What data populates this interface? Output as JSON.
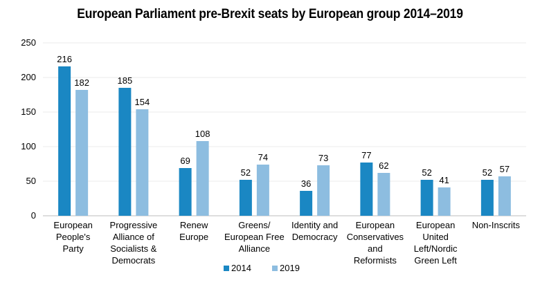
{
  "chart_data": {
    "type": "bar",
    "title": "European Parliament pre-Brexit seats by European group 2014–2019",
    "categories": [
      "European People's Party",
      "Progressive Alliance of Socialists & Democrats",
      "Renew Europe",
      "Greens/ European Free Alliance",
      "Identity and Democracy",
      "European Conservatives and Reformists",
      "European United Left/Nordic Green Left",
      "Non-Inscrits"
    ],
    "category_lines": [
      [
        "European",
        "People's",
        "Party"
      ],
      [
        "Progressive",
        "Alliance of",
        "Socialists &",
        "Democrats"
      ],
      [
        "Renew",
        "Europe"
      ],
      [
        "Greens/",
        "European Free",
        "Alliance"
      ],
      [
        "Identity and",
        "Democracy"
      ],
      [
        "European",
        "Conservatives",
        "and",
        "Reformists"
      ],
      [
        "European",
        "United",
        "Left/Nordic",
        "Green Left"
      ],
      [
        "Non-Inscrits"
      ]
    ],
    "series": [
      {
        "name": "2014",
        "color": "#1a87c3",
        "values": [
          216,
          185,
          69,
          52,
          36,
          77,
          52,
          52
        ]
      },
      {
        "name": "2019",
        "color": "#8dbde0",
        "values": [
          182,
          154,
          108,
          74,
          73,
          62,
          41,
          57
        ]
      }
    ],
    "ylim": [
      0,
      250
    ],
    "yticks": [
      0,
      50,
      100,
      150,
      200,
      250
    ],
    "xlabel": "",
    "ylabel": "",
    "grid": true,
    "legend_position": "bottom-center"
  }
}
